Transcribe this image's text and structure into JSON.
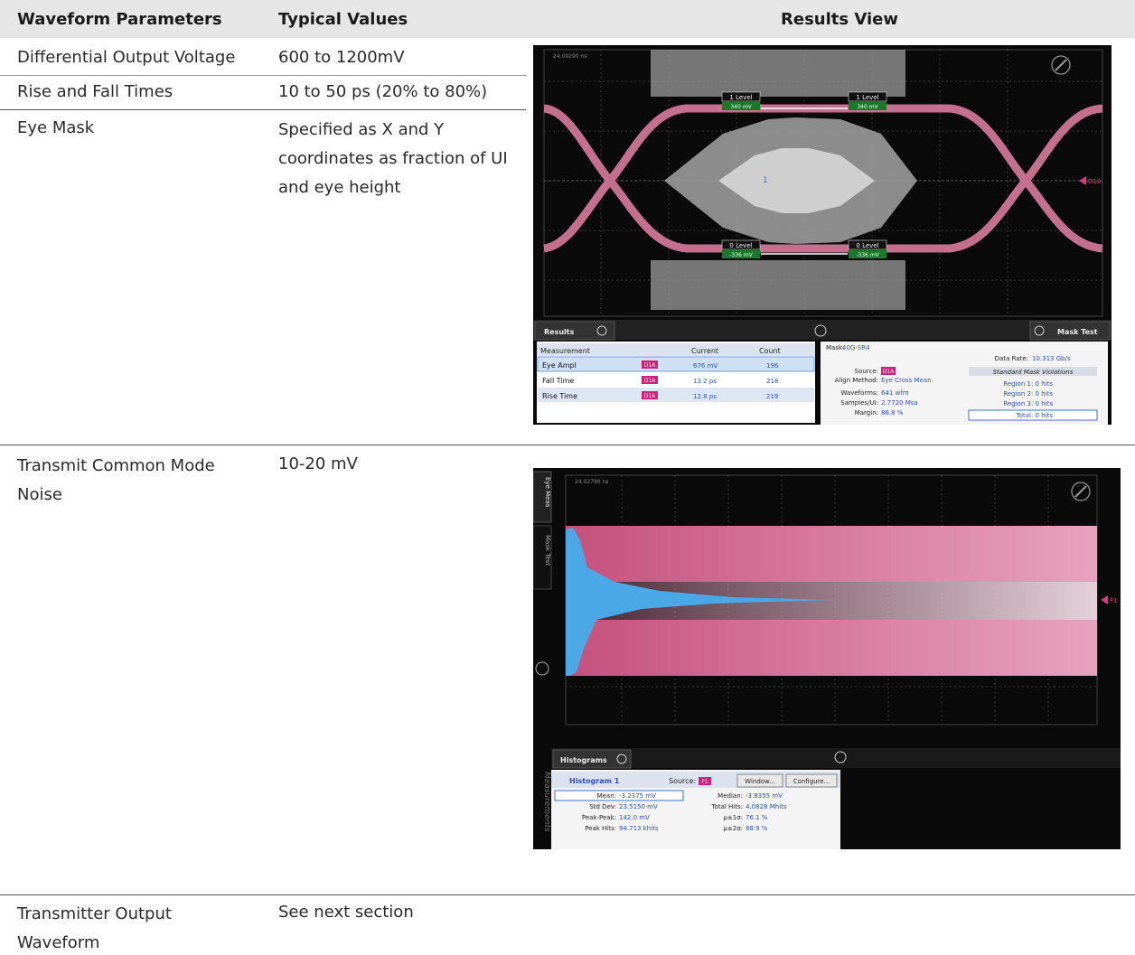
{
  "header": {
    "col1": "Waveform Parameters",
    "col2": "Typical Values",
    "col3": "Results View"
  },
  "rows": [
    {
      "param": "Differential Output Voltage",
      "value": "600 to 1200mV"
    },
    {
      "param": "Rise and Fall Times",
      "value": "10 to 50 ps (20% to 80%)"
    },
    {
      "param": "Eye Mask",
      "value": "Specified as X and Y coordinates as fraction of UI and eye height"
    },
    {
      "param": "Transmit Common Mode Noise",
      "value": "10-20 mV"
    },
    {
      "param": "Transmitter Output Waveform",
      "value": "See next section"
    }
  ],
  "eye_screen": {
    "timestamp": "24.09290 ns",
    "level1_label": "1 Level",
    "level1_value": "340 mV",
    "level0_label": "0 Level",
    "level0_value": "-336 mV",
    "mask_region": "1",
    "channel_marker": "D1A",
    "results_tab": "Results",
    "mask_tab": "Mask Test",
    "table_headers": [
      "Measurement",
      "Current",
      "Count"
    ],
    "measurements": [
      {
        "name": "Eye Ampl",
        "src": "D1A",
        "current": "676 mV",
        "count": "196"
      },
      {
        "name": "Fall Time",
        "src": "D1A",
        "current": "13.2 ps",
        "count": "218"
      },
      {
        "name": "Rise Time",
        "src": "D1A",
        "current": "12.8 ps",
        "count": "219"
      }
    ],
    "mask": {
      "mask_label": "Mask:",
      "mask_value": "40G-SR4",
      "data_rate_label": "Data Rate:",
      "data_rate_value": "10.313 Gb/s",
      "source_label": "Source:",
      "source_value": "D1A",
      "align_label": "Align Method:",
      "align_value": "Eye Cross Mean",
      "waveforms_label": "Waveforms:",
      "waveforms_value": "641 wfm",
      "samples_label": "Samples/UI:",
      "samples_value": "2.7720 Msa",
      "margin_label": "Margin:",
      "margin_value": "86.8 %",
      "violations_title": "Standard Mask Violations",
      "region1": "Region 1: 0 hits",
      "region2": "Region 2: 0 hits",
      "region3": "Region 3: 0 hits",
      "total": "Total: 0 hits"
    }
  },
  "noise_screen": {
    "timestamp": "24.02790 ns",
    "side_tab1": "Eye Meas",
    "side_tab2": "Mask Test",
    "side_bottom": "Measurements",
    "channel_marker": "F1",
    "hist_tab": "Histograms",
    "hist_name": "Histogram 1",
    "source_label": "Source:",
    "source_value": "F1",
    "window_btn": "Window...",
    "configure_btn": "Configure...",
    "stats_left": [
      {
        "label": "Mean:",
        "value": "-3.2375 mV"
      },
      {
        "label": "Std Dev:",
        "value": "23.5150 mV"
      },
      {
        "label": "Peak-Peak:",
        "value": "142.0 mV"
      },
      {
        "label": "Peak Hits:",
        "value": "94.713 khits"
      }
    ],
    "stats_right": [
      {
        "label": "Median:",
        "value": "-3.8355 mV"
      },
      {
        "label": "Total Hits:",
        "value": "4.0828 Mhits"
      },
      {
        "label": "μ±1σ:",
        "value": "76.1 %"
      },
      {
        "label": "μ±2σ:",
        "value": "88.9 %"
      }
    ]
  },
  "colors": {
    "header_bg": "#e6e6e6",
    "scope_bg": "#0a0a0a",
    "trace_pink": "#d97a9c",
    "hist_blue": "#4aa8e6",
    "mask_gray": "#8a8a8a"
  }
}
